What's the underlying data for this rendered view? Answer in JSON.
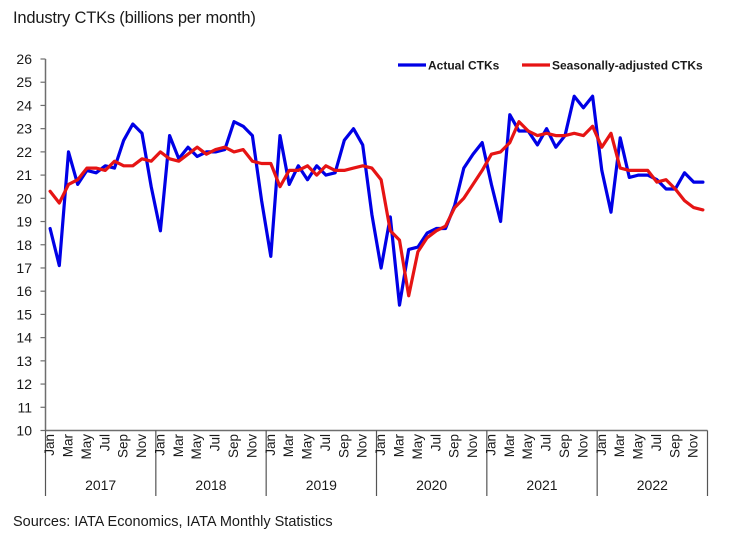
{
  "title": "Industry CTKs (billions per month)",
  "source": "Sources: IATA Economics, IATA Monthly Statistics",
  "chart_data": {
    "type": "line",
    "title": "Industry CTKs (billions per month)",
    "xlabel": "",
    "ylabel": "",
    "ylim": [
      10,
      26
    ],
    "yticks": [
      "10",
      "11",
      "12",
      "13",
      "14",
      "15",
      "16",
      "17",
      "18",
      "19",
      "20",
      "21",
      "22",
      "23",
      "24",
      "25",
      "26"
    ],
    "month_labels": [
      "Jan",
      "Mar",
      "May",
      "Jul",
      "Sep",
      "Nov"
    ],
    "years": [
      "2017",
      "2018",
      "2019",
      "2020",
      "2021",
      "2022"
    ],
    "grid": false,
    "legend_position": "top-right",
    "series": [
      {
        "name": "Actual CTKs",
        "color": "#0000e6",
        "values": [
          18.7,
          17.1,
          22.0,
          20.6,
          21.2,
          21.1,
          21.4,
          21.3,
          22.5,
          23.2,
          22.8,
          20.5,
          18.6,
          22.7,
          21.7,
          22.2,
          21.8,
          22.0,
          22.0,
          22.1,
          23.3,
          23.1,
          22.7,
          19.9,
          17.5,
          22.7,
          20.6,
          21.4,
          20.8,
          21.4,
          21.0,
          21.1,
          22.5,
          23.0,
          22.3,
          19.3,
          17.0,
          19.2,
          15.4,
          17.8,
          17.9,
          18.5,
          18.7,
          18.7,
          19.7,
          21.3,
          21.9,
          22.4,
          20.6,
          19.0,
          23.6,
          22.9,
          22.9,
          22.3,
          23.0,
          22.2,
          22.7,
          24.4,
          23.9,
          24.4,
          21.2,
          19.4,
          22.6,
          20.9,
          21.0,
          21.0,
          20.8,
          20.4,
          20.4,
          21.1,
          20.7,
          20.7
        ]
      },
      {
        "name": "Seasonally-adjusted CTKs",
        "color": "#e61414",
        "values": [
          20.3,
          19.8,
          20.6,
          20.8,
          21.3,
          21.3,
          21.2,
          21.6,
          21.4,
          21.4,
          21.7,
          21.6,
          22.0,
          21.7,
          21.6,
          21.9,
          22.2,
          21.9,
          22.1,
          22.2,
          22.0,
          22.1,
          21.6,
          21.5,
          21.5,
          20.5,
          21.2,
          21.2,
          21.4,
          21.0,
          21.4,
          21.2,
          21.2,
          21.3,
          21.4,
          21.3,
          20.8,
          18.6,
          18.2,
          15.8,
          17.7,
          18.3,
          18.6,
          18.8,
          19.6,
          20.0,
          20.6,
          21.2,
          21.9,
          22.0,
          22.4,
          23.3,
          22.9,
          22.7,
          22.8,
          22.7,
          22.7,
          22.8,
          22.7,
          23.1,
          22.2,
          22.8,
          21.3,
          21.2,
          21.2,
          21.2,
          20.7,
          20.8,
          20.4,
          19.9,
          19.6,
          19.5
        ]
      }
    ]
  }
}
